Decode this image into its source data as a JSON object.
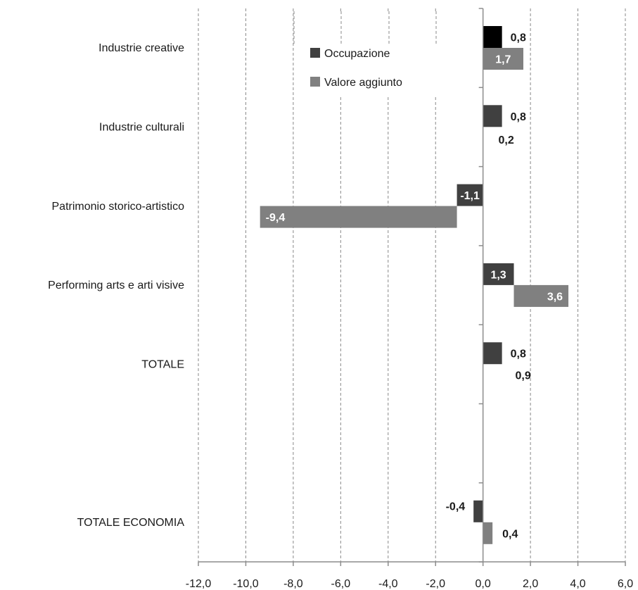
{
  "chart_data": {
    "type": "bar",
    "orientation": "horizontal",
    "categories": [
      "Industrie creative",
      "Industrie culturali",
      "Patrimonio storico-artistico",
      "Performing arts e arti visive",
      "TOTALE",
      "",
      "TOTALE ECONOMIA"
    ],
    "series": [
      {
        "name": "Occupazione",
        "values": [
          0.8,
          0.8,
          -1.1,
          1.3,
          0.8,
          null,
          -0.4
        ],
        "labels": [
          "0,8",
          "0,8",
          "-1,1",
          "1,3",
          "0,8",
          "",
          "-0,4"
        ]
      },
      {
        "name": "Valore aggiunto",
        "values": [
          1.7,
          0.2,
          -9.4,
          3.6,
          0.9,
          null,
          0.4
        ],
        "labels": [
          "1,7",
          "0,2",
          "-9,4",
          "3,6",
          "0,9",
          "",
          "0,4"
        ]
      }
    ],
    "x_ticks": [
      -12,
      -10,
      -8,
      -6,
      -4,
      -2,
      0,
      2,
      4,
      6
    ],
    "x_tick_labels": [
      "-12,0",
      "-10,0",
      "-8,0",
      "-6,0",
      "-4,0",
      "-2,0",
      "0,0",
      "2,0",
      "4,0",
      "6,0"
    ],
    "xlim": [
      -12,
      6
    ],
    "title": "",
    "xlabel": "",
    "ylabel": "",
    "grid": "vertical dashed",
    "legend_position": "top-center",
    "colors": {
      "Occupazione": "#404040",
      "Valore aggiunto": "#808080",
      "first_occupazione": "#000000"
    }
  }
}
